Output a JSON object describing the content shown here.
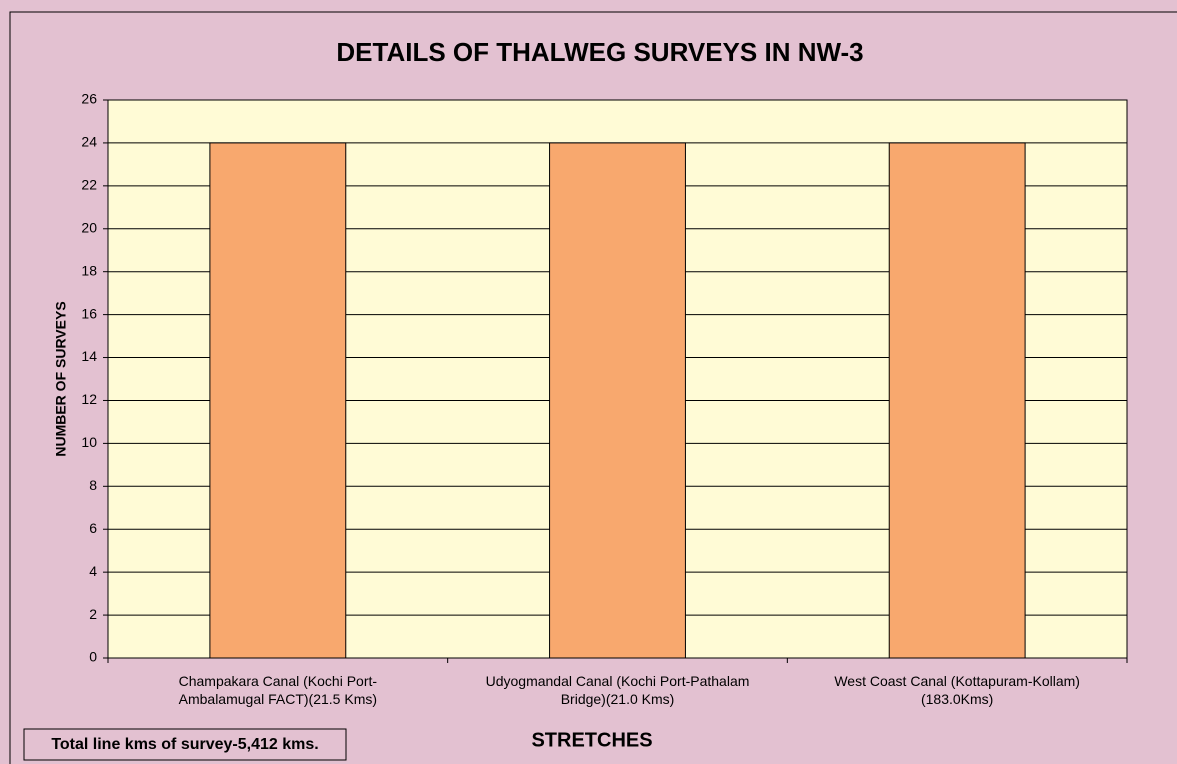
{
  "chart_data": {
    "type": "bar",
    "title": "DETAILS OF THALWEG SURVEYS IN NW-3",
    "y_label": "NUMBER OF SURVEYS",
    "x_label": "STRETCHES",
    "annotation": "Total line kms of survey-5,412 kms.",
    "categories": [
      "Champakara Canal (Kochi Port-Ambalamugal FACT)(21.5 Kms)",
      "Udyogmandal Canal (Kochi Port-Pathalam Bridge)(21.0 Kms)",
      "West Coast Canal (Kottapuram-Kollam)(183.0Kms)"
    ],
    "values": [
      24,
      24,
      24
    ],
    "color": "#f8a86e",
    "ylim": [
      0,
      26
    ],
    "yticks": [
      0,
      2,
      4,
      6,
      8,
      10,
      12,
      14,
      16,
      18,
      20,
      22,
      24,
      26
    ],
    "grid": true
  }
}
